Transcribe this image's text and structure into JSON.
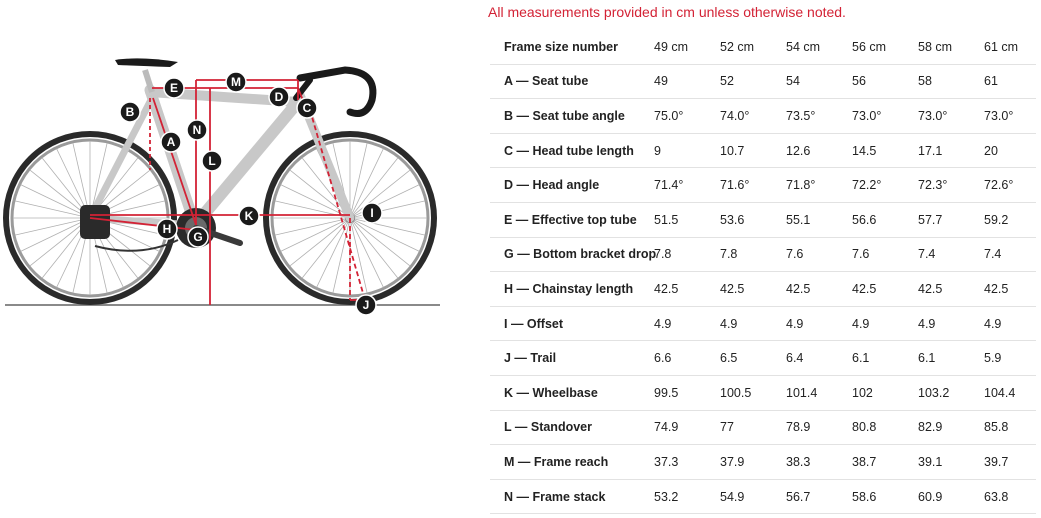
{
  "note": "All measurements provided in cm unless otherwise noted.",
  "table": {
    "header_label": "Frame size number",
    "sizes": [
      "49 cm",
      "52 cm",
      "54 cm",
      "56 cm",
      "58 cm",
      "61 cm"
    ],
    "rows": [
      {
        "label": "A — Seat tube",
        "values": [
          "49",
          "52",
          "54",
          "56",
          "58",
          "61"
        ]
      },
      {
        "label": "B — Seat tube angle",
        "values": [
          "75.0°",
          "74.0°",
          "73.5°",
          "73.0°",
          "73.0°",
          "73.0°"
        ]
      },
      {
        "label": "C — Head tube length",
        "values": [
          "9",
          "10.7",
          "12.6",
          "14.5",
          "17.1",
          "20"
        ]
      },
      {
        "label": "D — Head angle",
        "values": [
          "71.4°",
          "71.6°",
          "71.8°",
          "72.2°",
          "72.3°",
          "72.6°"
        ]
      },
      {
        "label": "E — Effective top tube",
        "values": [
          "51.5",
          "53.6",
          "55.1",
          "56.6",
          "57.7",
          "59.2"
        ]
      },
      {
        "label": "G — Bottom bracket drop",
        "values": [
          "7.8",
          "7.8",
          "7.6",
          "7.6",
          "7.4",
          "7.4"
        ]
      },
      {
        "label": "H — Chainstay length",
        "values": [
          "42.5",
          "42.5",
          "42.5",
          "42.5",
          "42.5",
          "42.5"
        ]
      },
      {
        "label": "I — Offset",
        "values": [
          "4.9",
          "4.9",
          "4.9",
          "4.9",
          "4.9",
          "4.9"
        ]
      },
      {
        "label": "J — Trail",
        "values": [
          "6.6",
          "6.5",
          "6.4",
          "6.1",
          "6.1",
          "5.9"
        ]
      },
      {
        "label": "K — Wheelbase",
        "values": [
          "99.5",
          "100.5",
          "101.4",
          "102",
          "103.2",
          "104.4"
        ]
      },
      {
        "label": "L — Standover",
        "values": [
          "74.9",
          "77",
          "78.9",
          "80.8",
          "82.9",
          "85.8"
        ]
      },
      {
        "label": "M — Frame reach",
        "values": [
          "37.3",
          "37.9",
          "38.3",
          "38.7",
          "39.1",
          "39.7"
        ]
      },
      {
        "label": "N — Frame stack",
        "values": [
          "53.2",
          "54.9",
          "56.7",
          "58.6",
          "60.9",
          "63.8"
        ]
      }
    ]
  },
  "diagram": {
    "markers": [
      "A",
      "B",
      "C",
      "D",
      "E",
      "G",
      "H",
      "I",
      "J",
      "K",
      "L",
      "M",
      "N"
    ],
    "colors": {
      "frame": "#c8c8c8",
      "measure": "#d32235",
      "marker": "#1a1a1a",
      "note": "#d32235"
    }
  }
}
